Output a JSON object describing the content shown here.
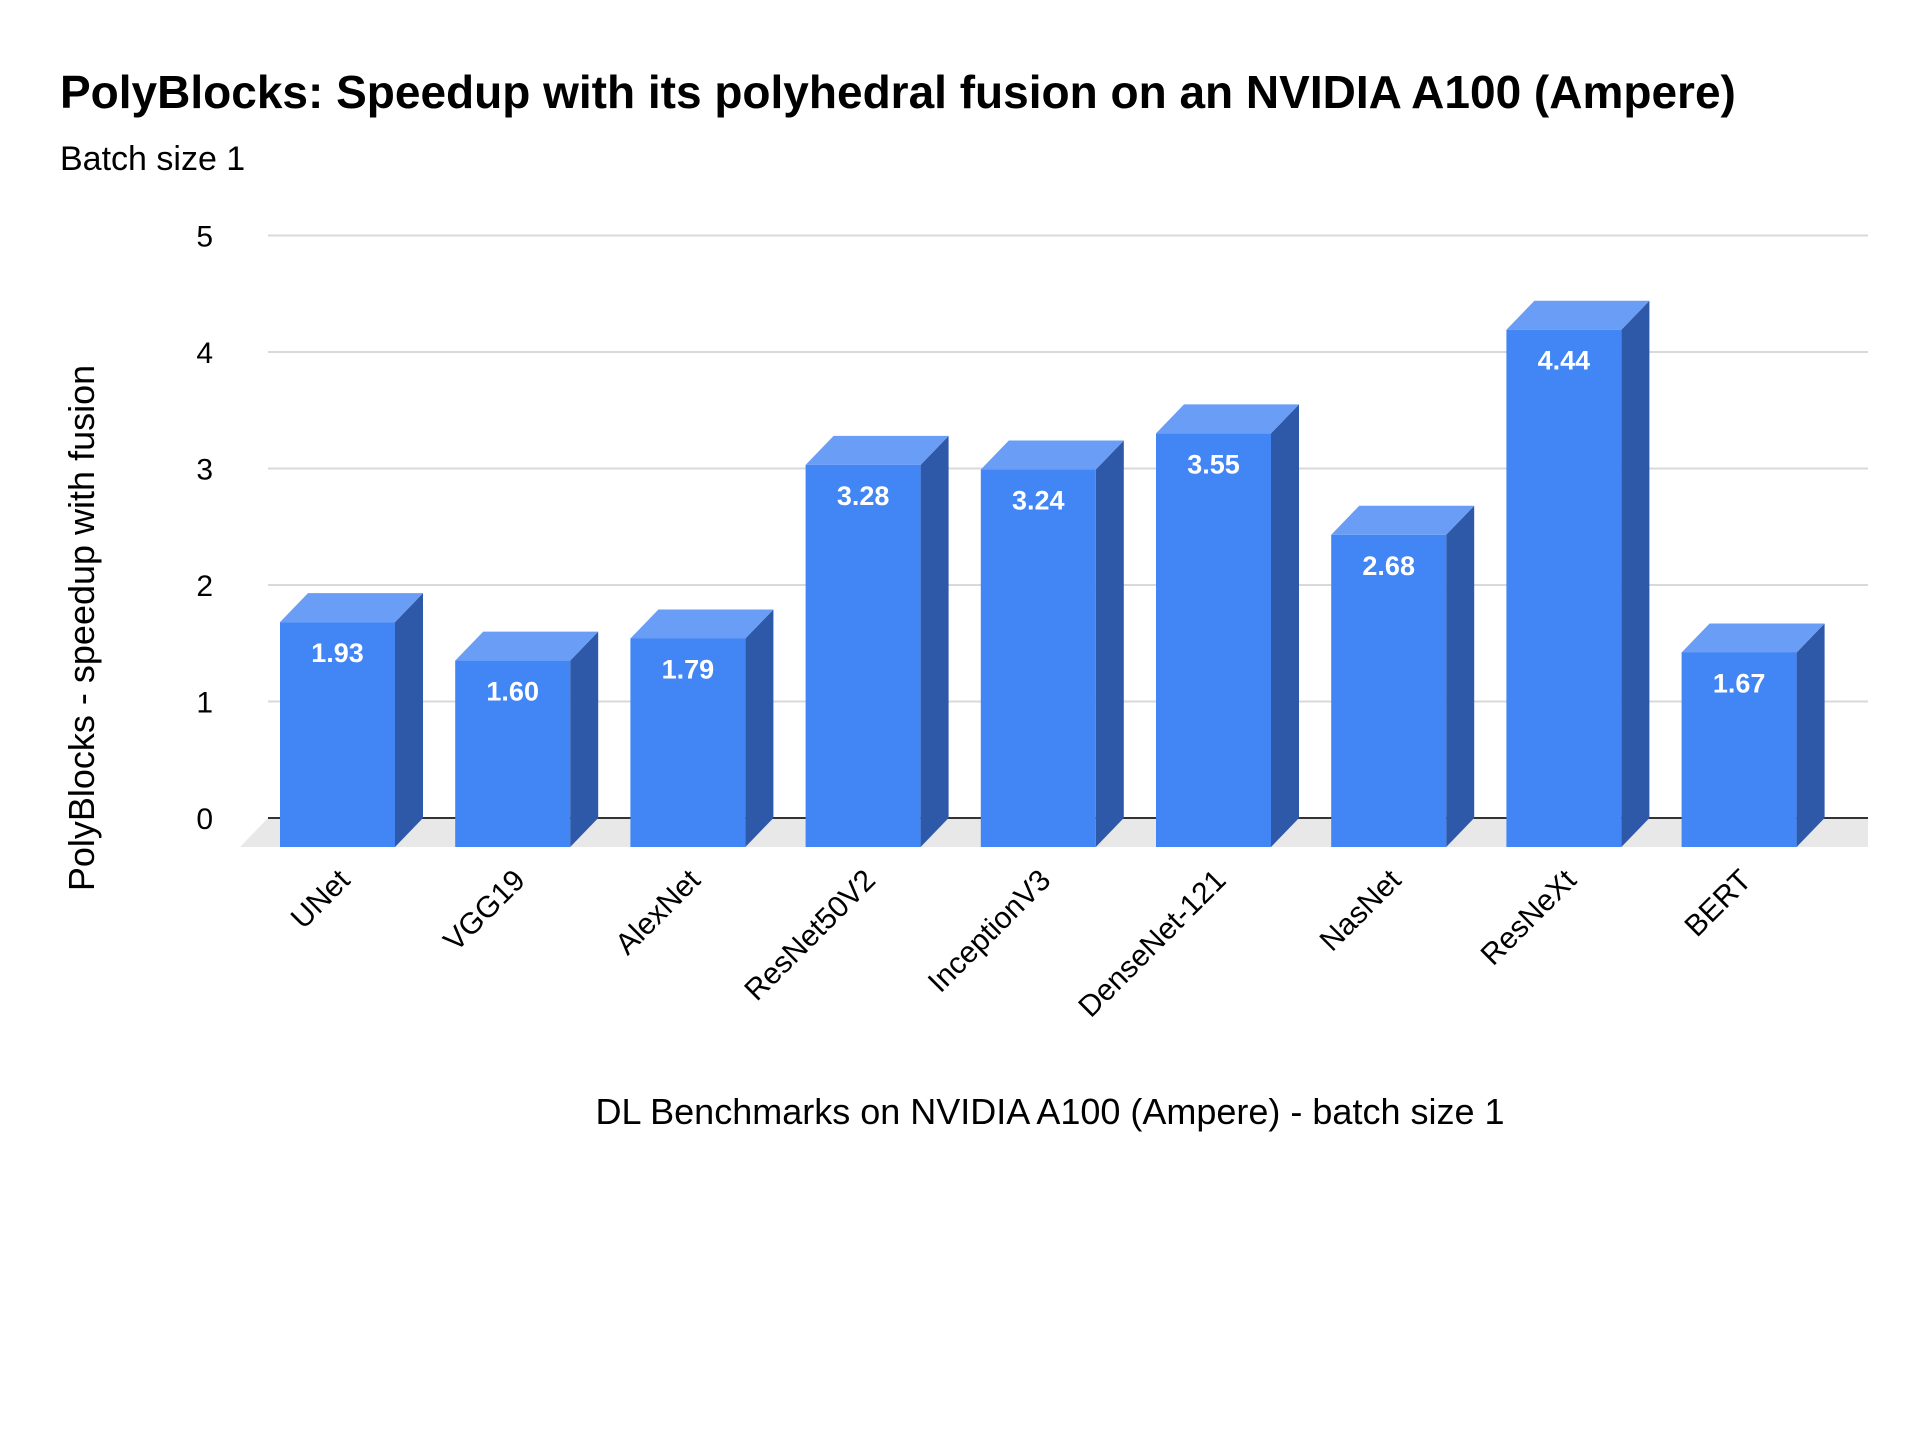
{
  "chart_data": {
    "type": "bar",
    "style": "3d",
    "title": "PolyBlocks: Speedup with its polyhedral fusion on an NVIDIA A100 (Ampere)",
    "subtitle": "Batch size 1",
    "xlabel": "DL Benchmarks on NVIDIA A100 (Ampere) - batch size 1",
    "ylabel": "PolyBlocks - speedup with fusion",
    "categories": [
      "UNet",
      "VGG19",
      "AlexNet",
      "ResNet50V2",
      "InceptionV3",
      "DenseNet-121",
      "NasNet",
      "ResNeXt",
      "BERT"
    ],
    "values": [
      1.93,
      1.6,
      1.79,
      3.28,
      3.24,
      3.55,
      2.68,
      4.44,
      1.67
    ],
    "data_labels": [
      "1.93",
      "1.60",
      "1.79",
      "3.28",
      "3.24",
      "3.55",
      "2.68",
      "4.44",
      "1.67"
    ],
    "ylim": [
      0,
      5
    ],
    "yticks": [
      0,
      1,
      2,
      3,
      4,
      5
    ],
    "grid": true,
    "legend": "none",
    "colors": {
      "bar_front": "#4285f4",
      "bar_side": "#2e58a8",
      "bar_top": "#6a9df5",
      "floor": "#e8e8e8",
      "grid": "#d9d9d9",
      "label": "#ffffff"
    }
  }
}
